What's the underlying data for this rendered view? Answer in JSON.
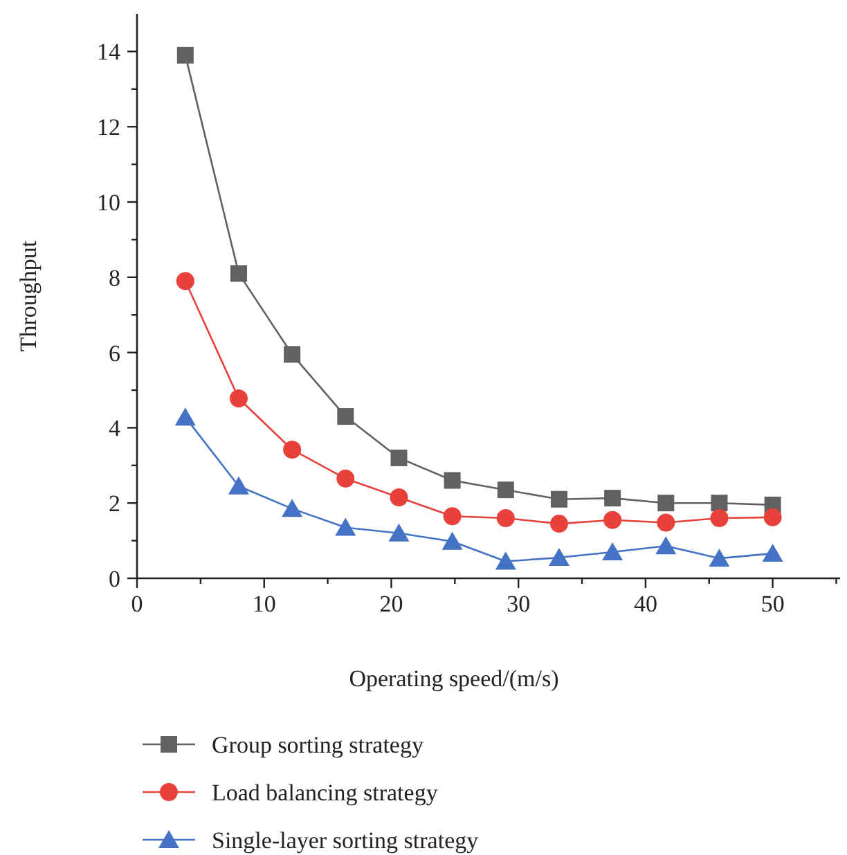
{
  "chart_data": {
    "type": "line",
    "xlabel": "Operating speed/(m/s)",
    "ylabel": "Throughput",
    "x": [
      3.8,
      8,
      12.2,
      16.4,
      20.6,
      24.8,
      29,
      33.2,
      37.4,
      41.6,
      45.8,
      50
    ],
    "xlim": [
      0,
      55.3
    ],
    "xticks": [
      0,
      {
        "value": 5,
        "label": null
      },
      10,
      {
        "value": 15,
        "label": null
      },
      20,
      {
        "value": 25,
        "label": null
      },
      30,
      {
        "value": 35,
        "label": null
      },
      40,
      {
        "value": 45,
        "label": null
      },
      50,
      {
        "value": 55,
        "label": null
      }
    ],
    "ylim": [
      0,
      15
    ],
    "yticks": [
      0,
      {
        "value": 1,
        "label": null
      },
      2,
      {
        "value": 3,
        "label": null
      },
      4,
      {
        "value": 5,
        "label": null
      },
      6,
      {
        "value": 7,
        "label": null
      },
      8,
      {
        "value": 9,
        "label": null
      },
      10,
      {
        "value": 11,
        "label": null
      },
      12,
      {
        "value": 13,
        "label": null
      },
      14
    ],
    "series": [
      {
        "name": "Group sorting strategy",
        "color": "#616161",
        "marker": "square",
        "values": [
          13.9,
          8.1,
          5.95,
          4.3,
          3.2,
          2.6,
          2.35,
          2.1,
          2.13,
          2.0,
          2.0,
          1.95
        ]
      },
      {
        "name": "Load balancing strategy",
        "color": "#e8413c",
        "marker": "circle",
        "values": [
          7.9,
          4.78,
          3.42,
          2.65,
          2.15,
          1.65,
          1.6,
          1.45,
          1.55,
          1.48,
          1.6,
          1.62
        ]
      },
      {
        "name": "Single-layer sorting strategy",
        "color": "#4472c4",
        "marker": "triangle",
        "values": [
          4.28,
          2.45,
          1.85,
          1.35,
          1.2,
          0.98,
          0.45,
          0.55,
          0.7,
          0.86,
          0.53,
          0.66
        ]
      }
    ],
    "legend": "bottom",
    "grid": false,
    "line_style": "solid"
  }
}
